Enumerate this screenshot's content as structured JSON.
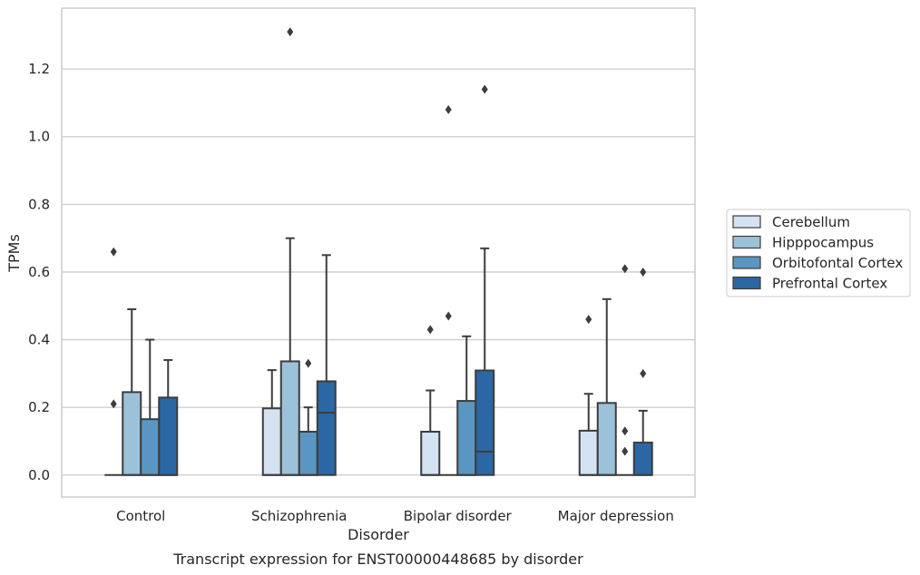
{
  "chart_data": {
    "type": "box",
    "xlabel": "Disorder",
    "ylabel": "TPMs",
    "caption": "Transcript expression for ENST00000448685 by disorder",
    "ylim": [
      -0.065,
      1.38
    ],
    "yticks": [
      "0.0",
      "0.2",
      "0.4",
      "0.6",
      "0.8",
      "1.0",
      "1.2"
    ],
    "ytick_values": [
      0.0,
      0.2,
      0.4,
      0.6,
      0.8,
      1.0,
      1.2
    ],
    "grid": "horizontal",
    "legend_position": "right",
    "categories": [
      "Control",
      "Schizophrenia",
      "Bipolar disorder",
      "Major depression"
    ],
    "series": [
      {
        "name": "Cerebellum",
        "color": "#d4e2f1",
        "boxes": [
          {
            "q1": 0.0,
            "median": 0.0,
            "q3": 0.0,
            "whisker_low": 0.0,
            "whisker_high": 0.0,
            "outliers": [
              0.21,
              0.66
            ]
          },
          {
            "q1": 0.0,
            "median": 0.0,
            "q3": 0.197,
            "whisker_low": 0.0,
            "whisker_high": 0.31,
            "outliers": []
          },
          {
            "q1": 0.0,
            "median": 0.0,
            "q3": 0.128,
            "whisker_low": 0.0,
            "whisker_high": 0.25,
            "outliers": [
              0.43
            ]
          },
          {
            "q1": 0.0,
            "median": 0.0,
            "q3": 0.131,
            "whisker_low": 0.0,
            "whisker_high": 0.24,
            "outliers": [
              0.46
            ]
          }
        ]
      },
      {
        "name": "Hipppocampus",
        "color": "#9cc2d9",
        "boxes": [
          {
            "q1": 0.0,
            "median": 0.0,
            "q3": 0.245,
            "whisker_low": 0.0,
            "whisker_high": 0.49,
            "outliers": []
          },
          {
            "q1": 0.0,
            "median": 0.0,
            "q3": 0.336,
            "whisker_low": 0.0,
            "whisker_high": 0.7,
            "outliers": [
              1.31
            ]
          },
          {
            "q1": 0.0,
            "median": 0.0,
            "q3": 0.0,
            "whisker_low": 0.0,
            "whisker_high": 0.0,
            "outliers": [
              0.47,
              1.08
            ]
          },
          {
            "q1": 0.0,
            "median": 0.0,
            "q3": 0.213,
            "whisker_low": 0.0,
            "whisker_high": 0.52,
            "outliers": []
          }
        ]
      },
      {
        "name": "Orbitofontal Cortex",
        "color": "#5a96c3",
        "boxes": [
          {
            "q1": 0.0,
            "median": 0.0,
            "q3": 0.165,
            "whisker_low": 0.0,
            "whisker_high": 0.4,
            "outliers": []
          },
          {
            "q1": 0.0,
            "median": 0.0,
            "q3": 0.128,
            "whisker_low": 0.0,
            "whisker_high": 0.2,
            "outliers": [
              0.33
            ]
          },
          {
            "q1": 0.0,
            "median": 0.0,
            "q3": 0.219,
            "whisker_low": 0.0,
            "whisker_high": 0.41,
            "outliers": []
          },
          {
            "q1": 0.0,
            "median": 0.0,
            "q3": 0.0,
            "whisker_low": 0.0,
            "whisker_high": 0.0,
            "outliers": [
              0.07,
              0.13,
              0.61
            ]
          }
        ]
      },
      {
        "name": "Prefrontal Cortex",
        "color": "#2b67a4",
        "boxes": [
          {
            "q1": 0.0,
            "median": 0.0,
            "q3": 0.229,
            "whisker_low": 0.0,
            "whisker_high": 0.34,
            "outliers": []
          },
          {
            "q1": 0.0,
            "median": 0.184,
            "q3": 0.277,
            "whisker_low": 0.0,
            "whisker_high": 0.65,
            "outliers": []
          },
          {
            "q1": 0.0,
            "median": 0.069,
            "q3": 0.309,
            "whisker_low": 0.0,
            "whisker_high": 0.67,
            "outliers": [
              1.14
            ]
          },
          {
            "q1": 0.0,
            "median": 0.0,
            "q3": 0.096,
            "whisker_low": 0.0,
            "whisker_high": 0.19,
            "outliers": [
              0.3,
              0.6
            ]
          }
        ]
      }
    ]
  }
}
